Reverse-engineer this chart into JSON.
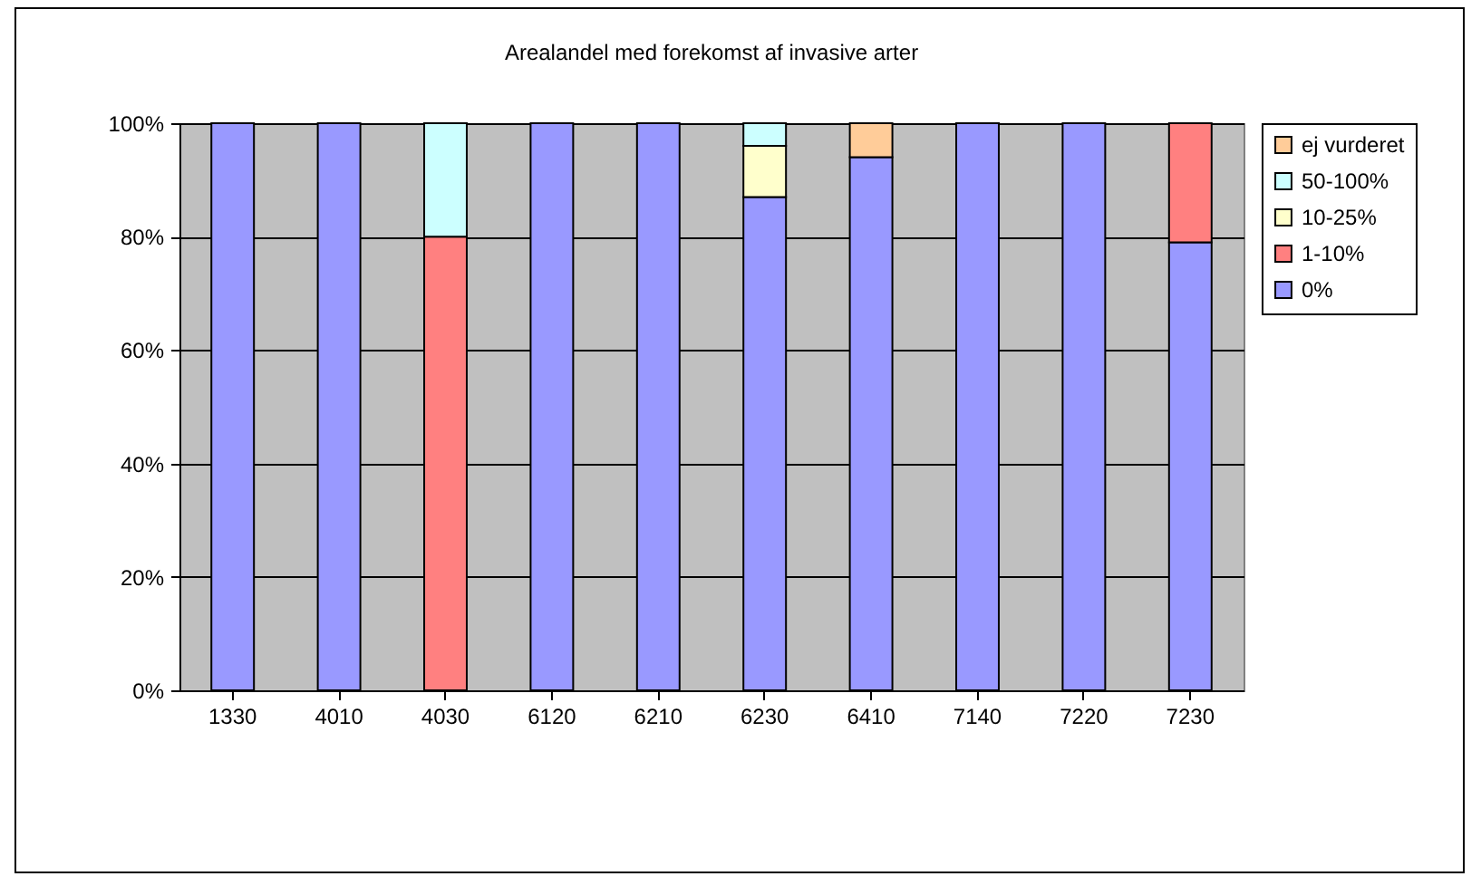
{
  "chart_data": {
    "type": "bar",
    "title": "Arealandel med forekomst af invasive arter",
    "stacked": true,
    "categories": [
      "1330",
      "4010",
      "4030",
      "6120",
      "6210",
      "6230",
      "6410",
      "7140",
      "7220",
      "7230"
    ],
    "series": [
      {
        "name": "0%",
        "color": "#9999ff",
        "values": [
          100,
          100,
          null,
          100,
          100,
          87,
          94,
          100,
          100,
          79
        ]
      },
      {
        "name": "1-10%",
        "color": "#ff8080",
        "values": [
          null,
          null,
          80,
          null,
          null,
          null,
          null,
          null,
          null,
          21
        ]
      },
      {
        "name": "10-25%",
        "color": "#ffffcc",
        "values": [
          null,
          null,
          null,
          null,
          null,
          9,
          null,
          null,
          null,
          null
        ]
      },
      {
        "name": "50-100%",
        "color": "#ccffff",
        "values": [
          null,
          null,
          20,
          null,
          null,
          4,
          null,
          null,
          null,
          null
        ]
      },
      {
        "name": "ej vurderet",
        "color": "#ffcc99",
        "values": [
          null,
          null,
          null,
          null,
          null,
          null,
          6,
          null,
          null,
          null
        ]
      }
    ],
    "ylim": [
      0,
      100
    ],
    "yticks": [
      {
        "value": 0,
        "label": "0%"
      },
      {
        "value": 20,
        "label": "20%"
      },
      {
        "value": 40,
        "label": "40%"
      },
      {
        "value": 60,
        "label": "60%"
      },
      {
        "value": 80,
        "label": "80%"
      },
      {
        "value": 100,
        "label": "100%"
      }
    ],
    "grid": "y",
    "legend": "right"
  }
}
